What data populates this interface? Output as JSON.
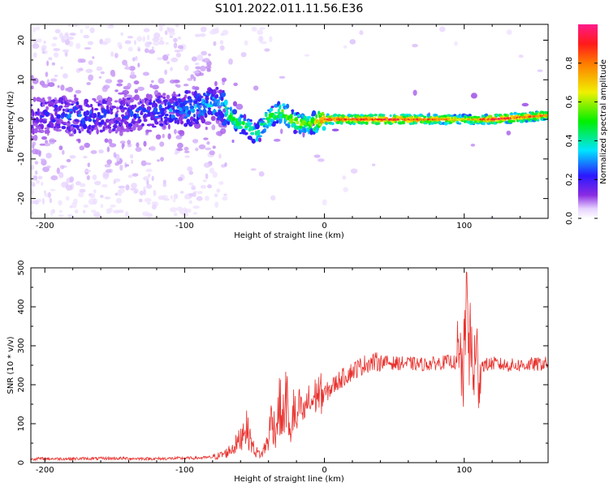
{
  "title": "S101.2022.011.11.56.E36",
  "colors": {
    "snr_line": "#e8312d",
    "axis": "#000000",
    "background": "#ffffff"
  },
  "chart_data": [
    {
      "type": "heatmap",
      "xlabel": "Height of straight line (km)",
      "ylabel": "Frequency (Hz)",
      "xlim": [
        -210,
        160
      ],
      "ylim": [
        -25,
        24
      ],
      "xticks": [
        -200,
        -100,
        0,
        100
      ],
      "yticks": [
        -20,
        -10,
        0,
        10,
        20
      ],
      "colorbar": {
        "label": "Normalized spectral amplitude",
        "range": [
          0,
          1
        ],
        "ticks": [
          0.0,
          0.2,
          0.4,
          0.6,
          0.8
        ],
        "tick_labels": [
          "0.0",
          "0.2",
          "0.4",
          "0.6",
          "0.8"
        ],
        "colormap": "rainbow (white-violet-blue-cyan-green-yellow-red-magenta)"
      },
      "ridge": [
        {
          "x": -210,
          "freq": 1,
          "amp": 0.15
        },
        {
          "x": -180,
          "freq": 1,
          "amp": 0.25
        },
        {
          "x": -150,
          "freq": 1,
          "amp": 0.2
        },
        {
          "x": -120,
          "freq": 2,
          "amp": 0.25
        },
        {
          "x": -90,
          "freq": 3,
          "amp": 0.3
        },
        {
          "x": -75,
          "freq": 4,
          "amp": 0.35
        },
        {
          "x": -65,
          "freq": 0,
          "amp": 0.5
        },
        {
          "x": -55,
          "freq": -2,
          "amp": 0.45
        },
        {
          "x": -48,
          "freq": -4,
          "amp": 0.4
        },
        {
          "x": -42,
          "freq": 0,
          "amp": 0.5
        },
        {
          "x": -30,
          "freq": 2,
          "amp": 0.55
        },
        {
          "x": -20,
          "freq": -1,
          "amp": 0.6
        },
        {
          "x": -10,
          "freq": -1,
          "amp": 0.55
        },
        {
          "x": 0,
          "freq": 0,
          "amp": 0.85
        },
        {
          "x": 50,
          "freq": 0,
          "amp": 0.85
        },
        {
          "x": 90,
          "freq": 0,
          "amp": 0.75
        },
        {
          "x": 100,
          "freq": 0,
          "amp": 0.6
        },
        {
          "x": 120,
          "freq": 0,
          "amp": 0.85
        },
        {
          "x": 160,
          "freq": 1,
          "amp": 0.75
        }
      ]
    },
    {
      "type": "line",
      "xlabel": "Height of straight line (km)",
      "ylabel": "SNR (10 * v/v)",
      "xlim": [
        -210,
        160
      ],
      "ylim": [
        0,
        500
      ],
      "xticks": [
        -200,
        -100,
        0,
        100
      ],
      "yticks": [
        0,
        100,
        200,
        300,
        400,
        500
      ],
      "series": [
        {
          "color": "#e8312d",
          "x": [
            -210,
            -180,
            -150,
            -120,
            -90,
            -80,
            -75,
            -70,
            -65,
            -60,
            -57,
            -54,
            -50,
            -45,
            -40,
            -38,
            -35,
            -32,
            -30,
            -27,
            -25,
            -22,
            -20,
            -18,
            -15,
            -12,
            -10,
            -5,
            0,
            10,
            20,
            30,
            40,
            50,
            60,
            70,
            80,
            90,
            95,
            100,
            102,
            104,
            106,
            108,
            110,
            115,
            120,
            130,
            140,
            150,
            160
          ],
          "y": [
            10,
            10,
            11,
            10,
            12,
            14,
            18,
            25,
            40,
            60,
            100,
            70,
            30,
            20,
            60,
            120,
            80,
            150,
            100,
            180,
            60,
            140,
            90,
            150,
            120,
            160,
            150,
            180,
            175,
            210,
            235,
            255,
            260,
            255,
            255,
            252,
            255,
            260,
            255,
            240,
            350,
            290,
            260,
            240,
            255,
            250,
            255,
            250,
            250,
            252,
            255
          ]
        }
      ]
    }
  ]
}
